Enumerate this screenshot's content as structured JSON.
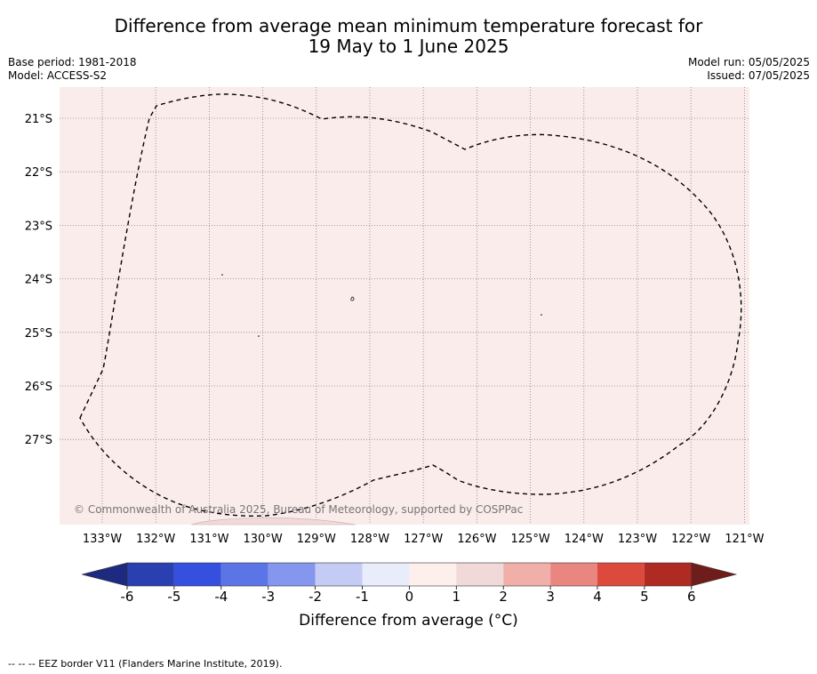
{
  "title_line1": "Difference from average mean minimum temperature forecast for",
  "title_line2": "19 May to 1 June 2025",
  "base_period": "Base period: 1981-2018",
  "model": "Model: ACCESS-S2",
  "model_run": "Model run: 05/05/2025",
  "issued": "Issued: 07/05/2025",
  "copyright": "© Commonwealth of Australia 2025, Bureau of Meteorology, supported by COSPPac",
  "lon_labels": [
    "133°W",
    "132°W",
    "131°W",
    "130°W",
    "129°W",
    "128°W",
    "127°W",
    "126°W",
    "125°W",
    "124°W",
    "123°W",
    "122°W",
    "121°W"
  ],
  "lat_labels": [
    "21°S",
    "22°S",
    "23°S",
    "24°S",
    "25°S",
    "26°S",
    "27°S"
  ],
  "map_colors": {
    "background": "#faeceb",
    "grid": "#8a7f8a",
    "border": "#000000"
  },
  "colorbar": {
    "ticks": [
      "-6",
      "-5",
      "-4",
      "-3",
      "-2",
      "-1",
      "0",
      "1",
      "2",
      "3",
      "4",
      "5",
      "6"
    ],
    "colors": [
      "#2a3fb0",
      "#3550de",
      "#5b74e6",
      "#8496ee",
      "#c4cbf5",
      "#e9ecfb",
      "#fcefec",
      "#f0d9d8",
      "#f0afa9",
      "#e8867f",
      "#dc4a3d",
      "#b02a24"
    ],
    "under_color": "#1e2a80",
    "over_color": "#6f1d1b",
    "label": "Difference from average (°C)"
  },
  "footer": "--  --  -- EEZ border V11 (Flanders Marine Institute, 2019)."
}
